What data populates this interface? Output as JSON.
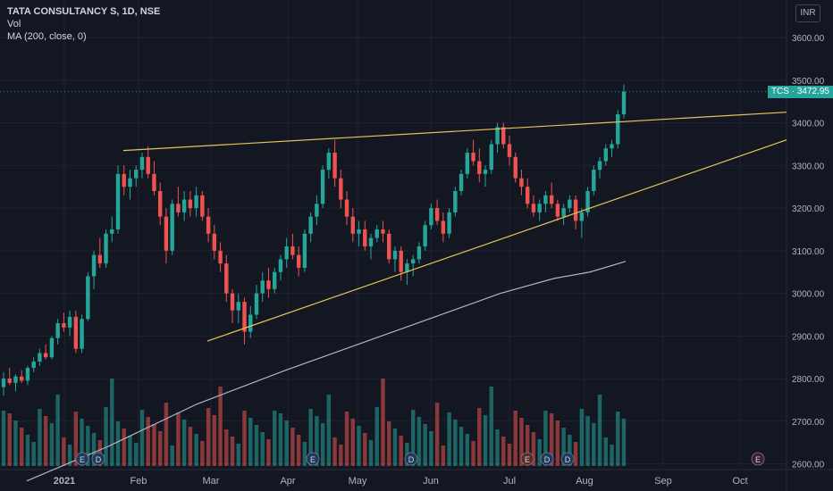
{
  "header": {
    "symbol_line": "TATA CONSULTANCY S, 1D, NSE",
    "indicator_vol": "Vol",
    "indicator_ma": "MA (200, close, 0)",
    "currency": "INR"
  },
  "price_tag": "TCS · 3472.95",
  "colors": {
    "bg": "#131722",
    "up": "#26a69a",
    "down": "#ef5350",
    "trend": "#e6c35c",
    "ma": "#b2b5be",
    "grid": "#1f2330"
  },
  "chart_data": {
    "type": "candlestick",
    "y_ticks": [
      2600,
      2700,
      2800,
      2900,
      3000,
      3100,
      3200,
      3300,
      3400,
      3500,
      3600
    ],
    "y_tick_labels": [
      "2600.00",
      "2700.00",
      "2800.00",
      "2900.00",
      "3000.00",
      "3100.00",
      "3200.00",
      "3300.00",
      "3400.00",
      "3500.00",
      "3600.00"
    ],
    "ylim": [
      2595,
      3640
    ],
    "x_labels": [
      "2021",
      "Feb",
      "Mar",
      "Apr",
      "May",
      "Jun",
      "Jul",
      "Aug",
      "Sep",
      "Oct"
    ],
    "last_price": 3472.95,
    "ohlc": [
      [
        2780,
        2815,
        2760,
        2800
      ],
      [
        2800,
        2825,
        2785,
        2790
      ],
      [
        2790,
        2810,
        2770,
        2805
      ],
      [
        2805,
        2820,
        2790,
        2795
      ],
      [
        2795,
        2830,
        2785,
        2825
      ],
      [
        2825,
        2850,
        2815,
        2840
      ],
      [
        2840,
        2870,
        2830,
        2860
      ],
      [
        2860,
        2880,
        2845,
        2850
      ],
      [
        2850,
        2900,
        2845,
        2895
      ],
      [
        2895,
        2940,
        2880,
        2930
      ],
      [
        2930,
        2955,
        2910,
        2920
      ],
      [
        2920,
        2960,
        2900,
        2945
      ],
      [
        2945,
        2960,
        2860,
        2870
      ],
      [
        2870,
        2950,
        2860,
        2940
      ],
      [
        2940,
        3050,
        2935,
        3040
      ],
      [
        3040,
        3100,
        3010,
        3090
      ],
      [
        3090,
        3130,
        3060,
        3070
      ],
      [
        3070,
        3150,
        3060,
        3140
      ],
      [
        3140,
        3180,
        3120,
        3150
      ],
      [
        3150,
        3300,
        3140,
        3280
      ],
      [
        3280,
        3300,
        3230,
        3250
      ],
      [
        3250,
        3290,
        3220,
        3270
      ],
      [
        3270,
        3300,
        3250,
        3290
      ],
      [
        3290,
        3330,
        3270,
        3320
      ],
      [
        3320,
        3345,
        3270,
        3280
      ],
      [
        3280,
        3310,
        3230,
        3240
      ],
      [
        3240,
        3260,
        3160,
        3180
      ],
      [
        3180,
        3200,
        3070,
        3100
      ],
      [
        3100,
        3220,
        3090,
        3210
      ],
      [
        3210,
        3250,
        3180,
        3190
      ],
      [
        3190,
        3240,
        3170,
        3220
      ],
      [
        3220,
        3240,
        3180,
        3200
      ],
      [
        3200,
        3250,
        3180,
        3230
      ],
      [
        3230,
        3240,
        3170,
        3180
      ],
      [
        3180,
        3200,
        3120,
        3140
      ],
      [
        3140,
        3160,
        3080,
        3100
      ],
      [
        3100,
        3120,
        3050,
        3070
      ],
      [
        3070,
        3090,
        2980,
        3000
      ],
      [
        3000,
        3010,
        2930,
        2960
      ],
      [
        2960,
        3000,
        2930,
        2980
      ],
      [
        2980,
        2990,
        2880,
        2910
      ],
      [
        2910,
        2970,
        2895,
        2950
      ],
      [
        2950,
        3020,
        2940,
        3000
      ],
      [
        3000,
        3050,
        2980,
        3030
      ],
      [
        3030,
        3060,
        2990,
        3010
      ],
      [
        3010,
        3060,
        3000,
        3050
      ],
      [
        3050,
        3090,
        3030,
        3080
      ],
      [
        3080,
        3130,
        3060,
        3110
      ],
      [
        3110,
        3140,
        3080,
        3090
      ],
      [
        3090,
        3110,
        3040,
        3060
      ],
      [
        3060,
        3150,
        3050,
        3140
      ],
      [
        3140,
        3190,
        3120,
        3180
      ],
      [
        3180,
        3230,
        3160,
        3210
      ],
      [
        3210,
        3300,
        3200,
        3290
      ],
      [
        3290,
        3340,
        3270,
        3330
      ],
      [
        3330,
        3360,
        3250,
        3270
      ],
      [
        3270,
        3290,
        3200,
        3220
      ],
      [
        3220,
        3240,
        3160,
        3180
      ],
      [
        3180,
        3200,
        3120,
        3140
      ],
      [
        3140,
        3170,
        3110,
        3150
      ],
      [
        3150,
        3170,
        3100,
        3110
      ],
      [
        3110,
        3140,
        3080,
        3130
      ],
      [
        3130,
        3160,
        3120,
        3150
      ],
      [
        3150,
        3170,
        3120,
        3140
      ],
      [
        3140,
        3150,
        3070,
        3080
      ],
      [
        3080,
        3110,
        3050,
        3100
      ],
      [
        3100,
        3110,
        3030,
        3050
      ],
      [
        3050,
        3080,
        3020,
        3070
      ],
      [
        3070,
        3090,
        3040,
        3080
      ],
      [
        3080,
        3120,
        3070,
        3110
      ],
      [
        3110,
        3170,
        3100,
        3160
      ],
      [
        3160,
        3210,
        3150,
        3200
      ],
      [
        3200,
        3220,
        3160,
        3170
      ],
      [
        3170,
        3190,
        3120,
        3140
      ],
      [
        3140,
        3200,
        3130,
        3190
      ],
      [
        3190,
        3250,
        3180,
        3240
      ],
      [
        3240,
        3290,
        3230,
        3280
      ],
      [
        3280,
        3340,
        3270,
        3330
      ],
      [
        3330,
        3360,
        3300,
        3310
      ],
      [
        3310,
        3340,
        3260,
        3280
      ],
      [
        3280,
        3300,
        3250,
        3290
      ],
      [
        3290,
        3360,
        3280,
        3350
      ],
      [
        3350,
        3400,
        3330,
        3390
      ],
      [
        3390,
        3400,
        3340,
        3350
      ],
      [
        3350,
        3370,
        3300,
        3320
      ],
      [
        3320,
        3330,
        3260,
        3270
      ],
      [
        3270,
        3290,
        3230,
        3250
      ],
      [
        3250,
        3270,
        3200,
        3210
      ],
      [
        3210,
        3230,
        3180,
        3190
      ],
      [
        3190,
        3220,
        3170,
        3210
      ],
      [
        3210,
        3240,
        3190,
        3230
      ],
      [
        3230,
        3260,
        3200,
        3210
      ],
      [
        3210,
        3220,
        3170,
        3180
      ],
      [
        3180,
        3210,
        3160,
        3200
      ],
      [
        3200,
        3230,
        3190,
        3220
      ],
      [
        3220,
        3230,
        3150,
        3170
      ],
      [
        3170,
        3200,
        3130,
        3190
      ],
      [
        3190,
        3250,
        3180,
        3240
      ],
      [
        3240,
        3300,
        3230,
        3290
      ],
      [
        3290,
        3320,
        3270,
        3310
      ],
      [
        3310,
        3350,
        3300,
        3340
      ],
      [
        3340,
        3360,
        3320,
        3350
      ],
      [
        3350,
        3430,
        3340,
        3420
      ],
      [
        3420,
        3490,
        3410,
        3473
      ]
    ],
    "ma200": [
      [
        30,
        2560
      ],
      [
        120,
        2640
      ],
      [
        220,
        2740
      ],
      [
        320,
        2820
      ],
      [
        400,
        2880
      ],
      [
        480,
        2940
      ],
      [
        560,
        3000
      ],
      [
        620,
        3035
      ],
      [
        660,
        3050
      ],
      [
        700,
        3075
      ]
    ],
    "trendlines": [
      {
        "from": [
          138,
          3335
        ],
        "to": [
          880,
          3425
        ]
      },
      {
        "from": [
          232,
          2888
        ],
        "to": [
          880,
          3360
        ]
      }
    ]
  }
}
